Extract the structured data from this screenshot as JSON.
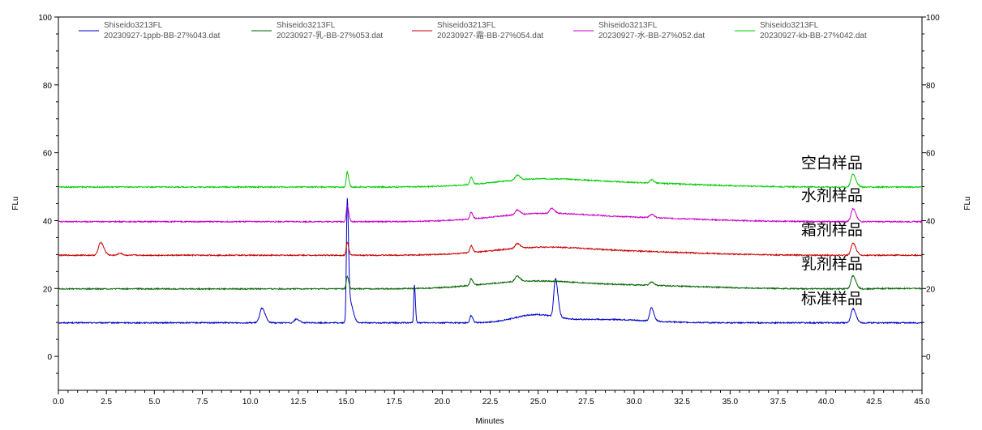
{
  "chart_data": {
    "type": "line",
    "xlabel": "Minutes",
    "ylabel": "FLu",
    "xlim": [
      0,
      45
    ],
    "ylim": [
      -10,
      100
    ],
    "x_ticks": [
      "0.0",
      "2.5",
      "5.0",
      "7.5",
      "10.0",
      "12.5",
      "15.0",
      "17.5",
      "20.0",
      "22.5",
      "25.0",
      "27.5",
      "30.0",
      "32.5",
      "35.0",
      "37.5",
      "40.0",
      "42.5",
      "45.0"
    ],
    "y_ticks": [
      "0",
      "20",
      "40",
      "60",
      "80",
      "100"
    ],
    "grid": false,
    "legend_position": "top",
    "series": [
      {
        "name": "Shiseido3213FL 20230927-1ppb-BB-27%043.dat",
        "color": "#0000c8",
        "baseline": 9.9,
        "end_level": 9.9,
        "peaks": [
          {
            "x": 10.6,
            "y": 4.3,
            "w": 0.13
          },
          {
            "x": 12.4,
            "y": 1.1,
            "w": 0.12
          },
          {
            "x": 15.05,
            "y": 34.8,
            "w": 0.05
          },
          {
            "x": 15.2,
            "y": 6.0,
            "w": 0.12
          },
          {
            "x": 18.55,
            "y": 11.2,
            "w": 0.04
          },
          {
            "x": 21.5,
            "y": 2.1,
            "w": 0.07
          },
          {
            "x": 25.9,
            "y": 11.2,
            "w": 0.1
          },
          {
            "x": 30.9,
            "y": 3.9,
            "w": 0.1
          },
          {
            "x": 41.4,
            "y": 4.1,
            "w": 0.12
          }
        ],
        "humps": [
          {
            "x": 24.8,
            "y": 2.2,
            "w": 1.5
          },
          {
            "x": 28.5,
            "y": 1.0,
            "w": 3.0
          }
        ]
      },
      {
        "name": "Shiseido3213FL 20230927-乳-BB-27%053.dat",
        "color": "#006400",
        "baseline": 19.9,
        "end_level": 20.0,
        "peaks": [
          {
            "x": 15.05,
            "y": 3.6,
            "w": 0.06
          },
          {
            "x": 21.5,
            "y": 2.0,
            "w": 0.07
          },
          {
            "x": 23.9,
            "y": 1.6,
            "w": 0.12
          },
          {
            "x": 30.9,
            "y": 1.0,
            "w": 0.1
          },
          {
            "x": 41.4,
            "y": 3.8,
            "w": 0.12
          }
        ],
        "humps": [
          {
            "x": 24.5,
            "y": 2.0,
            "w": 3.5
          },
          {
            "x": 30.0,
            "y": 1.0,
            "w": 5.0
          }
        ]
      },
      {
        "name": "Shiseido3213FL 20230927-霜-BB-27%054.dat",
        "color": "#c80000",
        "baseline": 29.8,
        "end_level": 29.8,
        "peaks": [
          {
            "x": 2.2,
            "y": 3.8,
            "w": 0.13
          },
          {
            "x": 3.2,
            "y": 0.6,
            "w": 0.1
          },
          {
            "x": 15.05,
            "y": 3.8,
            "w": 0.06
          },
          {
            "x": 21.5,
            "y": 2.0,
            "w": 0.07
          },
          {
            "x": 23.9,
            "y": 1.4,
            "w": 0.12
          },
          {
            "x": 41.4,
            "y": 3.5,
            "w": 0.12
          }
        ],
        "humps": [
          {
            "x": 25.0,
            "y": 2.0,
            "w": 3.5
          },
          {
            "x": 30.0,
            "y": 1.0,
            "w": 5.0
          }
        ]
      },
      {
        "name": "Shiseido3213FL 20230927-水-BB-27%052.dat",
        "color": "#c800c8",
        "baseline": 39.7,
        "end_level": 39.7,
        "peaks": [
          {
            "x": 15.05,
            "y": 4.8,
            "w": 0.06
          },
          {
            "x": 21.5,
            "y": 2.0,
            "w": 0.07
          },
          {
            "x": 23.9,
            "y": 1.4,
            "w": 0.12
          },
          {
            "x": 25.7,
            "y": 1.5,
            "w": 0.12
          },
          {
            "x": 30.9,
            "y": 1.0,
            "w": 0.1
          },
          {
            "x": 41.4,
            "y": 3.8,
            "w": 0.12
          }
        ],
        "humps": [
          {
            "x": 25.0,
            "y": 2.0,
            "w": 3.5
          },
          {
            "x": 30.0,
            "y": 1.1,
            "w": 5.0
          }
        ]
      },
      {
        "name": "Shiseido3213FL 20230927-kb-BB-27%042.dat",
        "color": "#00cc00",
        "baseline": 49.9,
        "end_level": 49.9,
        "peaks": [
          {
            "x": 15.05,
            "y": 4.4,
            "w": 0.06
          },
          {
            "x": 21.5,
            "y": 2.0,
            "w": 0.07
          },
          {
            "x": 23.9,
            "y": 1.4,
            "w": 0.12
          },
          {
            "x": 30.9,
            "y": 1.0,
            "w": 0.1
          },
          {
            "x": 41.4,
            "y": 3.8,
            "w": 0.12
          }
        ],
        "humps": [
          {
            "x": 25.0,
            "y": 2.0,
            "w": 3.5
          },
          {
            "x": 30.0,
            "y": 1.1,
            "w": 5.0
          }
        ]
      }
    ],
    "annotations": [
      {
        "text": "空白样品",
        "x": 38.7,
        "y": 55.5
      },
      {
        "text": "水剂样品",
        "x": 38.7,
        "y": 46.0
      },
      {
        "text": "霜剂样品",
        "x": 38.7,
        "y": 35.8
      },
      {
        "text": "乳剂样品",
        "x": 38.7,
        "y": 25.8
      },
      {
        "text": "标准样品",
        "x": 38.7,
        "y": 15.5
      }
    ]
  }
}
